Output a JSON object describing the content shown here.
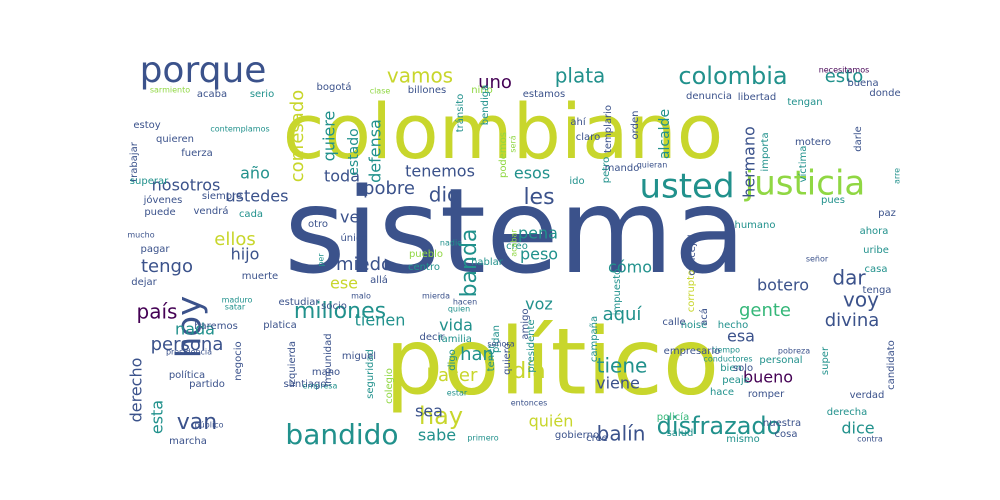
{
  "colors": {
    "purple": "#440154",
    "indigo": "#3b528b",
    "blue": "#31688e",
    "teal": "#21918c",
    "green": "#35b779",
    "lime": "#90d743",
    "yellow": "#c8d62c"
  },
  "words": [
    {
      "text": "sistema",
      "color": "indigo"
    },
    {
      "text": "colombiano",
      "color": "yellow"
    },
    {
      "text": "político",
      "color": "yellow"
    },
    {
      "text": "justicia",
      "color": "lime"
    },
    {
      "text": "usted",
      "color": "teal"
    },
    {
      "text": "porque",
      "color": "indigo"
    },
    {
      "text": "colombia",
      "color": "teal"
    },
    {
      "text": "bandido",
      "color": "teal"
    },
    {
      "text": "hoy",
      "color": "indigo"
    },
    {
      "text": "hay",
      "color": "yellow"
    },
    {
      "text": "disfrazado",
      "color": "teal"
    },
    {
      "text": "vamos",
      "color": "yellow"
    },
    {
      "text": "plata",
      "color": "teal"
    },
    {
      "text": "esto",
      "color": "teal"
    },
    {
      "text": "uno",
      "color": "purple"
    },
    {
      "text": "les",
      "color": "indigo"
    },
    {
      "text": "dio",
      "color": "indigo"
    },
    {
      "text": "pobre",
      "color": "indigo"
    },
    {
      "text": "tenemos",
      "color": "indigo"
    },
    {
      "text": "nosotros",
      "color": "indigo"
    },
    {
      "text": "ustedes",
      "color": "indigo"
    },
    {
      "text": "año",
      "color": "teal"
    },
    {
      "text": "toda",
      "color": "indigo"
    },
    {
      "text": "ver",
      "color": "indigo"
    },
    {
      "text": "confesado",
      "color": "yellow"
    },
    {
      "text": "quiere",
      "color": "teal"
    },
    {
      "text": "estado",
      "color": "teal"
    },
    {
      "text": "defensa",
      "color": "teal"
    },
    {
      "text": "esos",
      "color": "teal"
    },
    {
      "text": "pena",
      "color": "teal"
    },
    {
      "text": "peso",
      "color": "teal"
    },
    {
      "text": "voz",
      "color": "teal"
    },
    {
      "text": "banda",
      "color": "teal"
    },
    {
      "text": "ellos",
      "color": "yellow"
    },
    {
      "text": "hijo",
      "color": "indigo"
    },
    {
      "text": "tengo",
      "color": "indigo"
    },
    {
      "text": "miedo",
      "color": "indigo"
    },
    {
      "text": "ese",
      "color": "yellow"
    },
    {
      "text": "millones",
      "color": "teal"
    },
    {
      "text": "tienen",
      "color": "teal"
    },
    {
      "text": "país",
      "color": "purple"
    },
    {
      "text": "nada",
      "color": "teal"
    },
    {
      "text": "persona",
      "color": "indigo"
    },
    {
      "text": "vida",
      "color": "teal"
    },
    {
      "text": "van",
      "color": "indigo"
    },
    {
      "text": "derecho",
      "color": "indigo"
    },
    {
      "text": "esta",
      "color": "teal"
    },
    {
      "text": "han",
      "color": "teal"
    },
    {
      "text": "hacer",
      "color": "yellow"
    },
    {
      "text": "día",
      "color": "yellow"
    },
    {
      "text": "sea",
      "color": "indigo"
    },
    {
      "text": "sabe",
      "color": "teal"
    },
    {
      "text": "quién",
      "color": "yellow"
    },
    {
      "text": "balín",
      "color": "indigo"
    },
    {
      "text": "cómo",
      "color": "teal"
    },
    {
      "text": "aquí",
      "color": "teal"
    },
    {
      "text": "tiene",
      "color": "teal"
    },
    {
      "text": "bueno",
      "color": "purple"
    },
    {
      "text": "viene",
      "color": "indigo"
    },
    {
      "text": "gente",
      "color": "green"
    },
    {
      "text": "esa",
      "color": "indigo"
    },
    {
      "text": "dar",
      "color": "indigo"
    },
    {
      "text": "botero",
      "color": "indigo"
    },
    {
      "text": "voy",
      "color": "indigo"
    },
    {
      "text": "divina",
      "color": "indigo"
    },
    {
      "text": "hermano",
      "color": "indigo"
    },
    {
      "text": "alcalde",
      "color": "teal"
    },
    {
      "text": "dice",
      "color": "teal"
    },
    {
      "text": "digo",
      "color": "teal"
    },
    {
      "text": "bogotá",
      "color": "indigo"
    },
    {
      "text": "billones",
      "color": "indigo"
    },
    {
      "text": "niño",
      "color": "lime"
    },
    {
      "text": "acaba",
      "color": "indigo"
    },
    {
      "text": "serio",
      "color": "teal"
    },
    {
      "text": "estamos",
      "color": "indigo"
    },
    {
      "text": "denuncia",
      "color": "indigo"
    },
    {
      "text": "libertad",
      "color": "indigo"
    },
    {
      "text": "tengan",
      "color": "teal"
    },
    {
      "text": "donde",
      "color": "indigo"
    },
    {
      "text": "buena",
      "color": "indigo"
    },
    {
      "text": "necesitamos",
      "color": "purple"
    },
    {
      "text": "sarmiento",
      "color": "lime"
    },
    {
      "text": "clase",
      "color": "lime"
    },
    {
      "text": "estoy",
      "color": "indigo"
    },
    {
      "text": "quieren",
      "color": "indigo"
    },
    {
      "text": "fuerza",
      "color": "indigo"
    },
    {
      "text": "trabajar",
      "color": "indigo"
    },
    {
      "text": "superar",
      "color": "teal"
    },
    {
      "text": "vendrá",
      "color": "indigo"
    },
    {
      "text": "jóvenes",
      "color": "indigo"
    },
    {
      "text": "siempre",
      "color": "indigo"
    },
    {
      "text": "puede",
      "color": "indigo"
    },
    {
      "text": "cada",
      "color": "teal"
    },
    {
      "text": "otro",
      "color": "indigo"
    },
    {
      "text": "mucho",
      "color": "indigo"
    },
    {
      "text": "pagar",
      "color": "indigo"
    },
    {
      "text": "único",
      "color": "indigo"
    },
    {
      "text": "pueblo",
      "color": "lime"
    },
    {
      "text": "centro",
      "color": "teal"
    },
    {
      "text": "nadie",
      "color": "teal"
    },
    {
      "text": "hablar",
      "color": "teal"
    },
    {
      "text": "creo",
      "color": "teal"
    },
    {
      "text": "muerte",
      "color": "indigo"
    },
    {
      "text": "allá",
      "color": "indigo"
    },
    {
      "text": "dejar",
      "color": "indigo"
    },
    {
      "text": "maduro",
      "color": "teal"
    },
    {
      "text": "satar",
      "color": "teal"
    },
    {
      "text": "estudiar",
      "color": "indigo"
    },
    {
      "text": "socio",
      "color": "indigo"
    },
    {
      "text": "malo",
      "color": "indigo"
    },
    {
      "text": "mierda",
      "color": "indigo"
    },
    {
      "text": "quien",
      "color": "teal"
    },
    {
      "text": "hacen",
      "color": "indigo"
    },
    {
      "text": "haremos",
      "color": "indigo"
    },
    {
      "text": "platica",
      "color": "indigo"
    },
    {
      "text": "decir",
      "color": "indigo"
    },
    {
      "text": "familia",
      "color": "teal"
    },
    {
      "text": "mano",
      "color": "indigo"
    },
    {
      "text": "empresa",
      "color": "teal"
    },
    {
      "text": "estar",
      "color": "teal"
    },
    {
      "text": "santiago",
      "color": "indigo"
    },
    {
      "text": "impunidad",
      "color": "indigo"
    },
    {
      "text": "seguridad",
      "color": "teal"
    },
    {
      "text": "colegio",
      "color": "lime"
    },
    {
      "text": "izquierda",
      "color": "indigo"
    },
    {
      "text": "miguel",
      "color": "indigo"
    },
    {
      "text": "negocio",
      "color": "indigo"
    },
    {
      "text": "política",
      "color": "indigo"
    },
    {
      "text": "partido",
      "color": "indigo"
    },
    {
      "text": "presidencia",
      "color": "indigo"
    },
    {
      "text": "marcha",
      "color": "indigo"
    },
    {
      "text": "público",
      "color": "indigo"
    },
    {
      "text": "primero",
      "color": "teal"
    },
    {
      "text": "gobierno",
      "color": "indigo"
    },
    {
      "text": "cree",
      "color": "indigo"
    },
    {
      "text": "mismo",
      "color": "teal"
    },
    {
      "text": "salud",
      "color": "teal"
    },
    {
      "text": "cosa",
      "color": "indigo"
    },
    {
      "text": "policía",
      "color": "green"
    },
    {
      "text": "nuestra",
      "color": "indigo"
    },
    {
      "text": "derecha",
      "color": "teal"
    },
    {
      "text": "contra",
      "color": "indigo"
    },
    {
      "text": "verdad",
      "color": "indigo"
    },
    {
      "text": "candidato",
      "color": "indigo"
    },
    {
      "text": "super",
      "color": "teal"
    },
    {
      "text": "romper",
      "color": "indigo"
    },
    {
      "text": "hace",
      "color": "teal"
    },
    {
      "text": "peaje",
      "color": "teal"
    },
    {
      "text": "bien",
      "color": "teal"
    },
    {
      "text": "personal",
      "color": "teal"
    },
    {
      "text": "pobreza",
      "color": "indigo"
    },
    {
      "text": "tiempo",
      "color": "teal"
    },
    {
      "text": "conductores",
      "color": "teal"
    },
    {
      "text": "solo",
      "color": "indigo"
    },
    {
      "text": "empresario",
      "color": "indigo"
    },
    {
      "text": "hecho",
      "color": "teal"
    },
    {
      "text": "noise",
      "color": "teal"
    },
    {
      "text": "calle",
      "color": "indigo"
    },
    {
      "text": "amigo",
      "color": "indigo"
    },
    {
      "text": "pidan",
      "color": "teal"
    },
    {
      "text": "presidente",
      "color": "teal"
    },
    {
      "text": "tener",
      "color": "teal"
    },
    {
      "text": "quiero",
      "color": "indigo"
    },
    {
      "text": "campaña",
      "color": "teal"
    },
    {
      "text": "señora",
      "color": "indigo"
    },
    {
      "text": "corrupto",
      "color": "yellow"
    },
    {
      "text": "impuesto",
      "color": "teal"
    },
    {
      "text": "concejal",
      "color": "indigo"
    },
    {
      "text": "acá",
      "color": "indigo"
    },
    {
      "text": "humano",
      "color": "teal"
    },
    {
      "text": "tránsito",
      "color": "teal"
    },
    {
      "text": "bendiga",
      "color": "teal"
    },
    {
      "text": "podemos",
      "color": "lime"
    },
    {
      "text": "será",
      "color": "lime"
    },
    {
      "text": "ahí",
      "color": "indigo"
    },
    {
      "text": "claro",
      "color": "indigo"
    },
    {
      "text": "templario",
      "color": "indigo"
    },
    {
      "text": "orden",
      "color": "indigo"
    },
    {
      "text": "quieran",
      "color": "indigo"
    },
    {
      "text": "petro",
      "color": "teal"
    },
    {
      "text": "mando",
      "color": "indigo"
    },
    {
      "text": "ido",
      "color": "teal"
    },
    {
      "text": "acabar",
      "color": "lime"
    },
    {
      "text": "entonces",
      "color": "indigo"
    },
    {
      "text": "pues",
      "color": "teal"
    },
    {
      "text": "paz",
      "color": "indigo"
    },
    {
      "text": "ahora",
      "color": "teal"
    },
    {
      "text": "uribe",
      "color": "teal"
    },
    {
      "text": "casa",
      "color": "teal"
    },
    {
      "text": "tenga",
      "color": "indigo"
    },
    {
      "text": "señor",
      "color": "indigo"
    },
    {
      "text": "darle",
      "color": "indigo"
    },
    {
      "text": "motero",
      "color": "indigo"
    },
    {
      "text": "importa",
      "color": "teal"
    },
    {
      "text": "víctima",
      "color": "teal"
    },
    {
      "text": "arre",
      "color": "teal"
    },
    {
      "text": "contemplamos",
      "color": "teal"
    },
    {
      "text": "per",
      "color": "teal"
    }
  ]
}
